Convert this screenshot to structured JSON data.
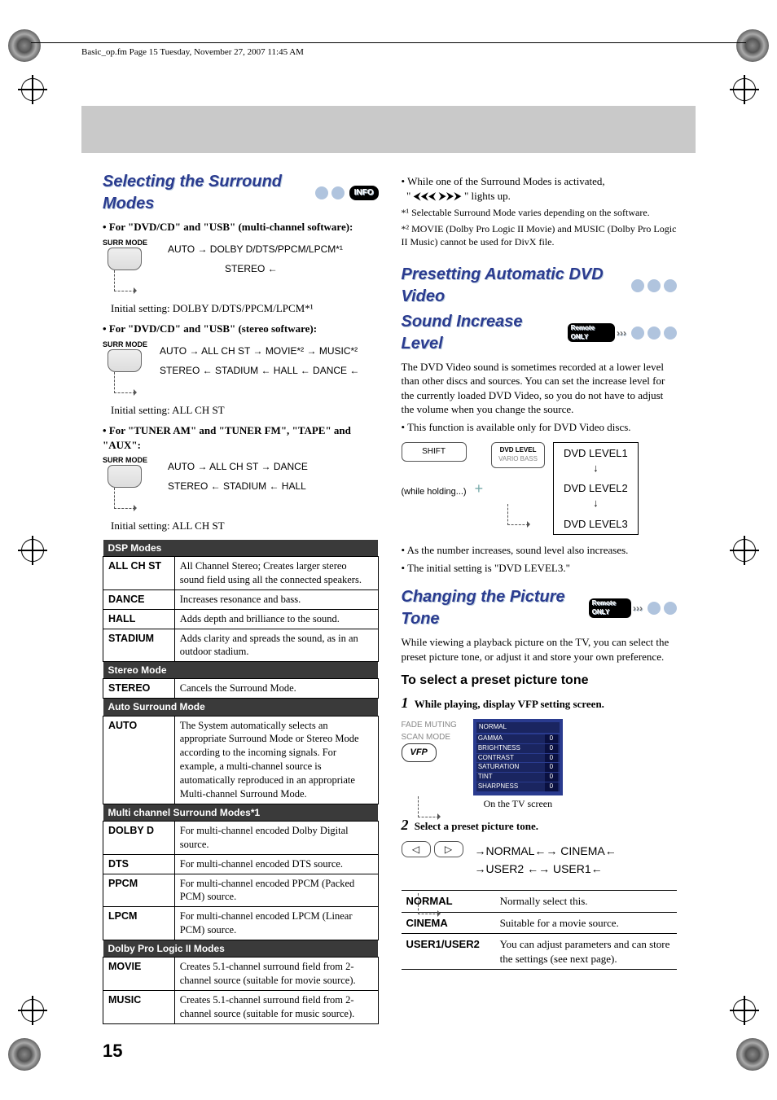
{
  "header_line": "Basic_op.fm  Page 15  Tuesday, November 27, 2007  11:45 AM",
  "page_number": "15",
  "left": {
    "title": "Selecting the Surround Modes",
    "info_label": "INFO",
    "b1": "For \"DVD/CD\" and \"USB\" (multi-channel software):",
    "surr_mode": "SURR MODE",
    "d1_l1": "AUTO   →   DOLBY D/DTS/PPCM/LPCM*¹",
    "d1_l2": "STEREO  ←",
    "init1": "Initial setting: DOLBY D/DTS/PPCM/LPCM*¹",
    "b2": "For \"DVD/CD\" and \"USB\" (stereo software):",
    "d2_l1": "AUTO → ALL CH ST → MOVIE*² → MUSIC*²",
    "d2_l2": "STEREO ← STADIUM ← HALL ← DANCE ←",
    "init2": "Initial setting: ALL CH ST",
    "b3": "For \"TUNER AM\" and \"TUNER FM\", \"TAPE\" and \"AUX\":",
    "d3_l1": "AUTO  →  ALL CH ST  →  DANCE",
    "d3_l2": "STEREO  ←  STADIUM  ←  HALL",
    "init3": "Initial setting: ALL CH ST",
    "th_dsp": "DSP Modes",
    "rows_dsp": [
      [
        "ALL CH ST",
        "All Channel Stereo; Creates larger stereo sound field using all the connected speakers."
      ],
      [
        "DANCE",
        "Increases resonance and bass."
      ],
      [
        "HALL",
        "Adds depth and brilliance to the sound."
      ],
      [
        "STADIUM",
        "Adds clarity and spreads the sound, as in an outdoor stadium."
      ]
    ],
    "th_stereo": "Stereo Mode",
    "rows_stereo": [
      [
        "STEREO",
        "Cancels the Surround Mode."
      ]
    ],
    "th_auto": "Auto Surround Mode",
    "rows_auto": [
      [
        "AUTO",
        "The System automatically selects an appropriate Surround Mode or Stereo Mode according to the incoming signals. For example, a multi-channel source is automatically reproduced in an appropriate Multi-channel Surround Mode."
      ]
    ],
    "th_multi": "Multi channel Surround Modes*1",
    "rows_multi": [
      [
        "DOLBY D",
        "For multi-channel encoded Dolby Digital source."
      ],
      [
        "DTS",
        "For multi-channel encoded DTS source."
      ],
      [
        "PPCM",
        "For multi-channel encoded PPCM (Packed PCM) source."
      ],
      [
        "LPCM",
        "For multi-channel encoded LPCM (Linear PCM) source."
      ]
    ],
    "th_dolby": "Dolby Pro Logic II Modes",
    "rows_dolby": [
      [
        "MOVIE",
        "Creates 5.1-channel surround field from 2-channel source (suitable for movie source)."
      ],
      [
        "MUSIC",
        "Creates 5.1-channel surround field from 2-channel source (suitable for music source)."
      ]
    ]
  },
  "right": {
    "note1a": "While one of the Surround Modes is activated,",
    "note1b": "\"  ⮜⮜⮜        ⮞⮞⮞  \" lights up.",
    "fn1": "*¹ Selectable Surround Mode varies depending on the software.",
    "fn2": "*² MOVIE (Dolby Pro Logic II Movie) and MUSIC (Dolby Pro Logic II Music) cannot be used for DivX file.",
    "title2a": "Presetting Automatic DVD Video",
    "title2b": "Sound Increase Level",
    "remote_only": "Remote ONLY",
    "p2": "The DVD Video sound is sometimes recorded at a lower level than other discs and sources. You can set the increase level for the currently loaded DVD Video, so you do not have to adjust the volume when you change the source.",
    "p2b": "This function is available only for DVD Video discs.",
    "shift": "SHIFT",
    "dvd_label1": "DVD LEVEL",
    "dvd_label2": "VARIO BASS",
    "while_holding": "(while holding...)",
    "levels": [
      "DVD LEVEL1",
      "DVD LEVEL2",
      "DVD LEVEL3"
    ],
    "note2": "As the number increases, sound level also increases.",
    "note3": "The initial setting is \"DVD LEVEL3.\"",
    "title3": "Changing the Picture Tone",
    "p3": "While viewing a playback picture on the TV, you can select the preset picture tone, or adjust it and store your own preference.",
    "sub_h": "To select a preset picture tone",
    "step1": "While playing, display VFP setting screen.",
    "fade": "FADE MUTING",
    "scan": "SCAN MODE",
    "vfp": "VFP",
    "osd_title": "NORMAL",
    "osd_rows": [
      [
        "GAMMA",
        "0"
      ],
      [
        "BRIGHTNESS",
        "0"
      ],
      [
        "CONTRAST",
        "0"
      ],
      [
        "SATURATION",
        "0"
      ],
      [
        "TINT",
        "0"
      ],
      [
        "SHARPNESS",
        "0"
      ]
    ],
    "osd_caption": "On the TV screen",
    "step2": "Select a preset picture tone.",
    "cycle_l1": "→NORMAL←→ CINEMA←",
    "cycle_l2": "→USER2 ←→ USER1←",
    "tone_rows": [
      [
        "NORMAL",
        "Normally select this."
      ],
      [
        "CINEMA",
        "Suitable for a movie source."
      ],
      [
        "USER1/USER2",
        "You can adjust parameters and can store the settings (see next page)."
      ]
    ]
  }
}
